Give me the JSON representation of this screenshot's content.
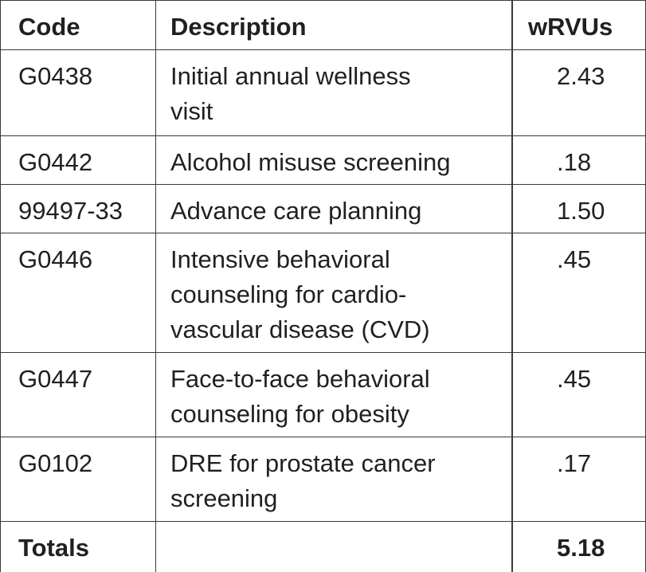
{
  "table": {
    "header": [
      "Code",
      "Description",
      "wRVUs"
    ],
    "rows": [
      {
        "code": "G0438",
        "description": [
          "Initial annual wellness",
          "visit"
        ],
        "wrvus": "2.43"
      },
      {
        "code": "G0442",
        "description": [
          "Alcohol misuse screening"
        ],
        "wrvus": ".18"
      },
      {
        "code": "99497-33",
        "description": [
          "Advance care planning"
        ],
        "wrvus": "1.50"
      },
      {
        "code": "G0446",
        "description": [
          "Intensive behavioral",
          "counseling for cardio-",
          "vascular disease (CVD)"
        ],
        "wrvus": ".45"
      },
      {
        "code": "G0447",
        "description": [
          "Face-to-face behavioral",
          "counseling for obesity"
        ],
        "wrvus": ".45"
      },
      {
        "code": "G0102",
        "description": [
          "DRE for prostate cancer",
          "screening"
        ],
        "wrvus": ".17"
      }
    ],
    "totals": {
      "label": "Totals",
      "wrvus": "5.18"
    }
  }
}
